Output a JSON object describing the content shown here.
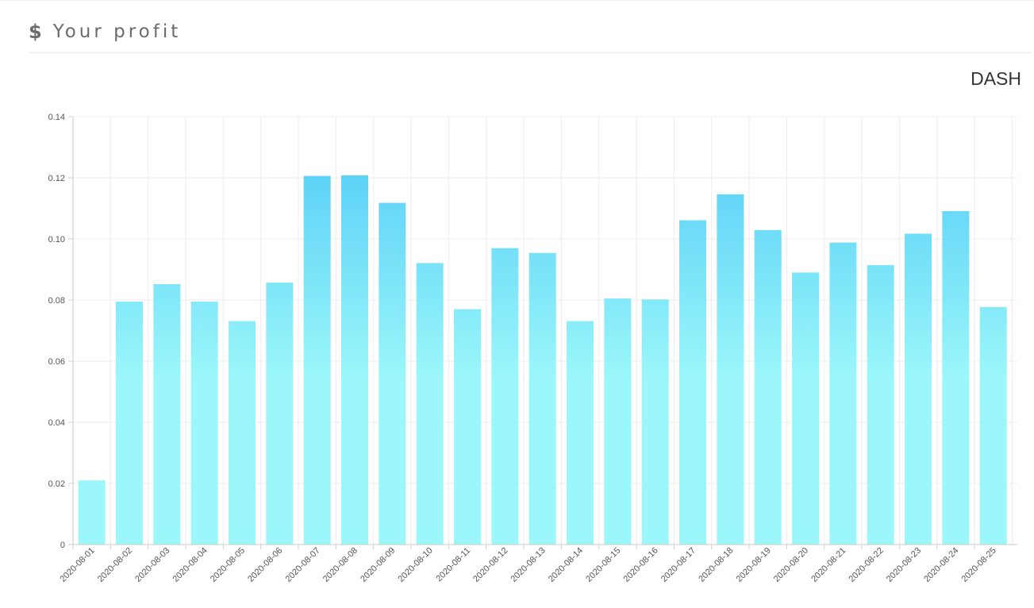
{
  "header": {
    "icon": "dollar-icon",
    "title": "Your profit"
  },
  "currency": "DASH",
  "colors": {
    "bar_top": "#5fd3f7",
    "bar_bottom": "#9bf7fa",
    "grid": "#ececec"
  },
  "chart_data": {
    "type": "bar",
    "title": "",
    "xlabel": "",
    "ylabel": "",
    "ylim": [
      0,
      0.14
    ],
    "yticks": [
      "0",
      "0.02",
      "0.04",
      "0.06",
      "0.08",
      "0.10",
      "0.12",
      "0.14"
    ],
    "grid": true,
    "categories": [
      "2020-08-01",
      "2020-08-02",
      "2020-08-03",
      "2020-08-04",
      "2020-08-05",
      "2020-08-06",
      "2020-08-07",
      "2020-08-08",
      "2020-08-09",
      "2020-08-10",
      "2020-08-11",
      "2020-08-12",
      "2020-08-13",
      "2020-08-14",
      "2020-08-15",
      "2020-08-16",
      "2020-08-17",
      "2020-08-18",
      "2020-08-19",
      "2020-08-20",
      "2020-08-21",
      "2020-08-22",
      "2020-08-23",
      "2020-08-24",
      "2020-08-25"
    ],
    "values": [
      0.021,
      0.0795,
      0.0852,
      0.0795,
      0.0731,
      0.0857,
      0.1206,
      0.1208,
      0.1118,
      0.0921,
      0.077,
      0.097,
      0.0954,
      0.0731,
      0.0805,
      0.0802,
      0.1061,
      0.1146,
      0.1029,
      0.089,
      0.0988,
      0.0914,
      0.1017,
      0.1091,
      0.0777
    ]
  }
}
